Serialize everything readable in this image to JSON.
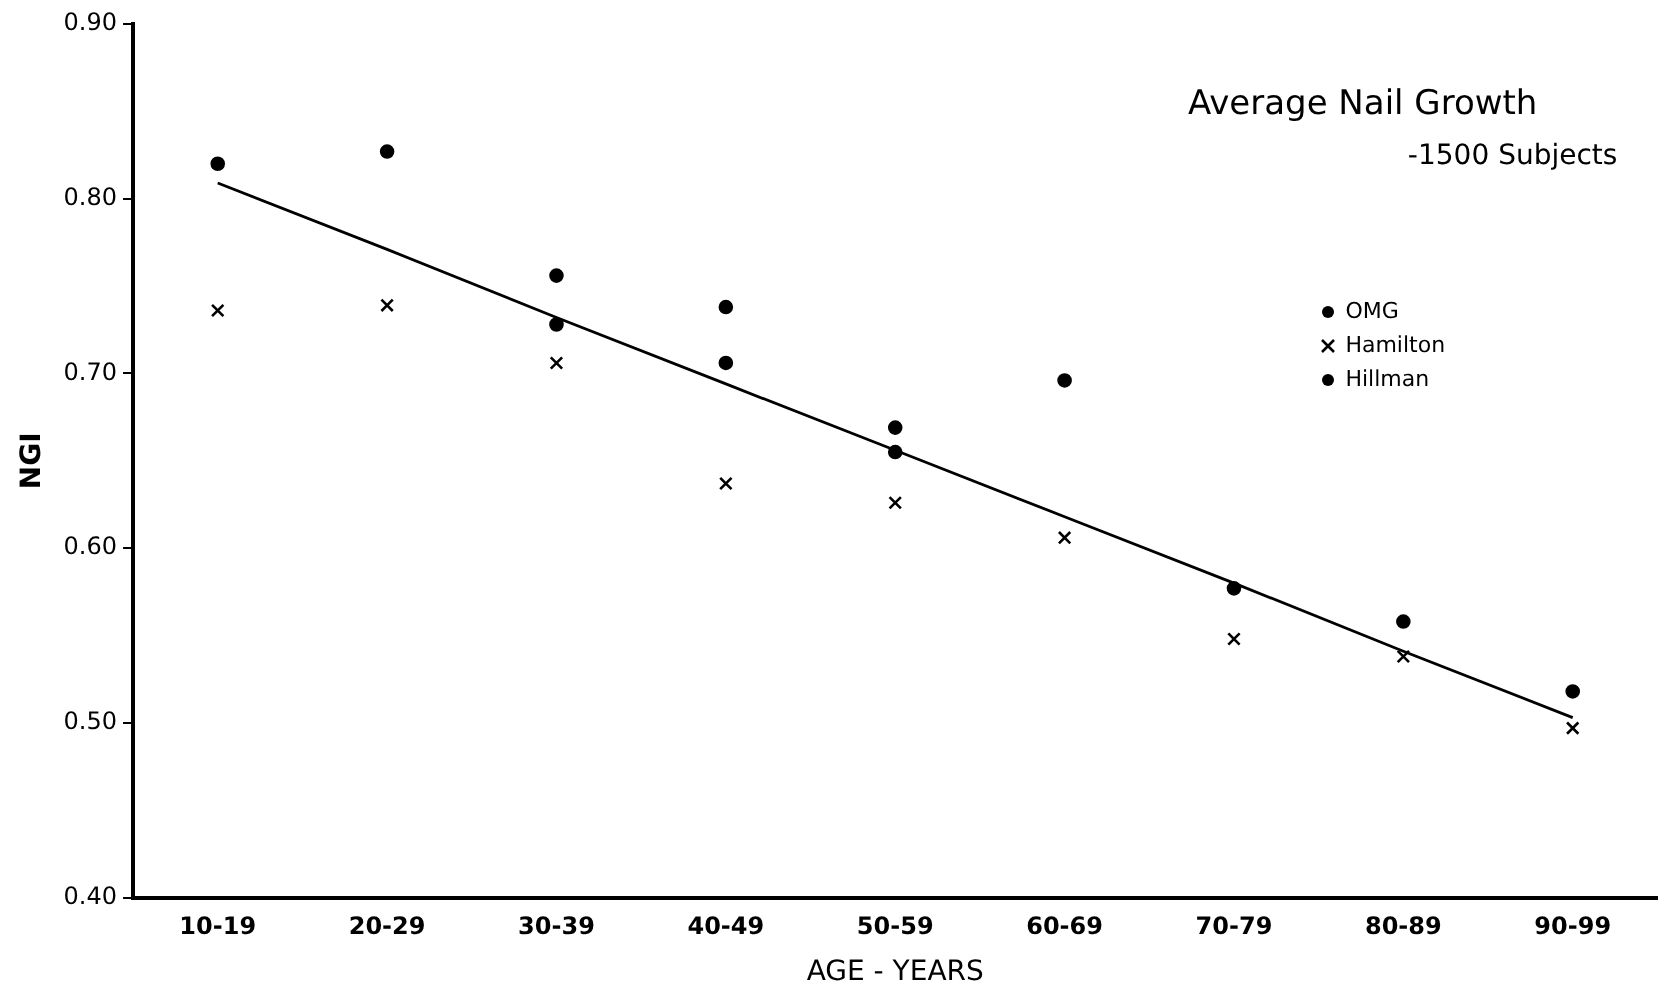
{
  "chart_data": {
    "type": "scatter",
    "title": "Average Nail Growth",
    "subtitle": "-1500 Subjects",
    "xlabel": "AGE - YEARS",
    "ylabel": "NGI",
    "categories": [
      "10-19",
      "20-29",
      "30-39",
      "40-49",
      "50-59",
      "60-69",
      "70-79",
      "80-89",
      "90-99"
    ],
    "series": [
      {
        "name": "OMG",
        "color": "#000000",
        "marker": "circle",
        "values": [
          0.82,
          null,
          0.728,
          0.738,
          0.655,
          0.696,
          0.577,
          0.558,
          0.518
        ]
      },
      {
        "name": "Hamilton",
        "color": "#000000",
        "marker": "cross",
        "values": [
          0.736,
          0.739,
          0.706,
          0.637,
          0.626,
          0.606,
          0.548,
          0.538,
          0.497
        ]
      },
      {
        "name": "Hillman",
        "color": "#000000",
        "marker": "circle",
        "values": [
          null,
          0.827,
          0.756,
          0.706,
          0.669,
          null,
          null,
          null,
          null
        ]
      },
      {
        "type": "line",
        "color": "#000000",
        "marker": "none",
        "values": [
          0.809,
          0.771,
          0.732,
          0.694,
          0.656,
          0.618,
          0.58,
          0.541,
          0.503
        ]
      }
    ],
    "ylim": [
      0.4,
      0.9
    ],
    "yticks": [
      {
        "value": 0.4,
        "label": "0.40"
      },
      {
        "value": 0.5,
        "label": "0.50"
      },
      {
        "value": 0.6,
        "label": "0.60"
      },
      {
        "value": 0.7,
        "label": "0.70"
      },
      {
        "value": 0.8,
        "label": "0.80"
      },
      {
        "value": 0.9,
        "label": "0.90"
      }
    ],
    "grid": false,
    "legend": "top right"
  }
}
